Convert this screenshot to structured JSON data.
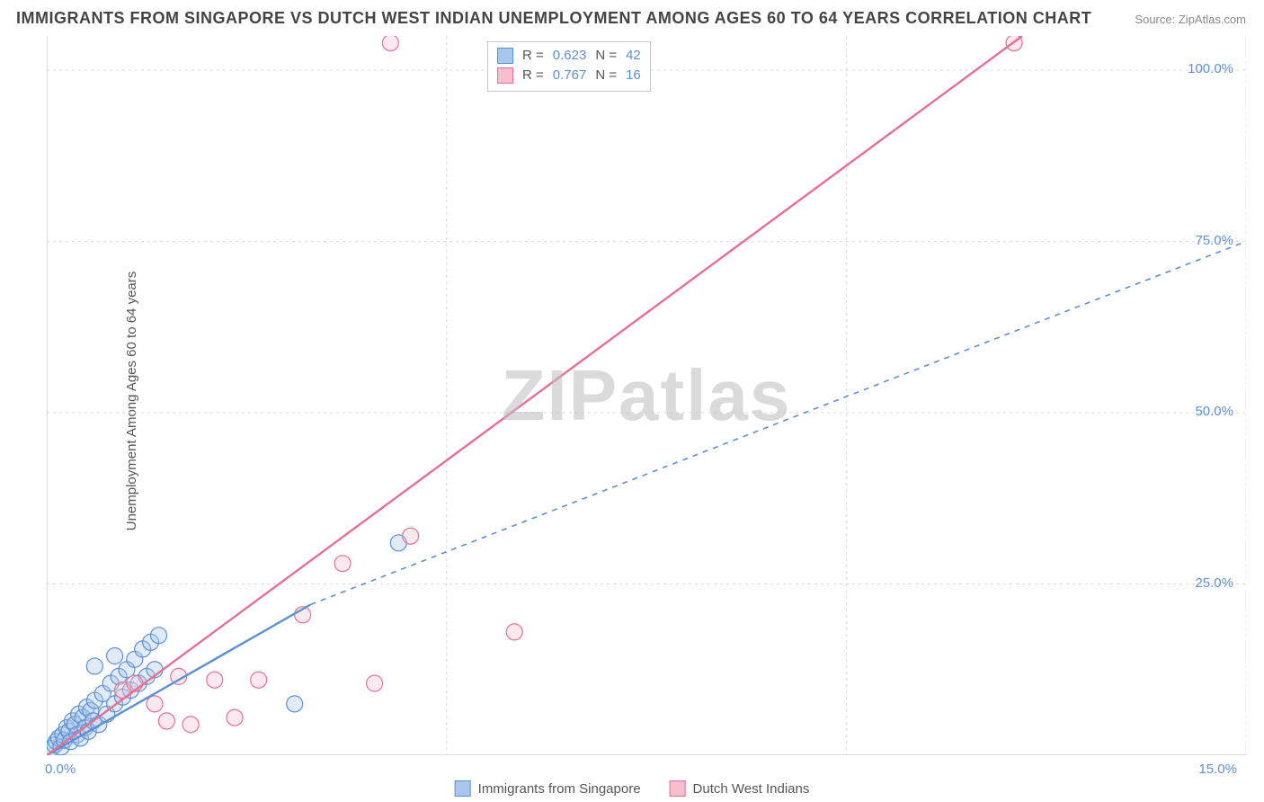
{
  "title": "IMMIGRANTS FROM SINGAPORE VS DUTCH WEST INDIAN UNEMPLOYMENT AMONG AGES 60 TO 64 YEARS CORRELATION CHART",
  "source_label": "Source:",
  "source_value": "ZipAtlas.com",
  "watermark": "ZIPatlas",
  "ylabel": "Unemployment Among Ages 60 to 64 years",
  "chart": {
    "type": "scatter",
    "background_color": "#ffffff",
    "grid_color": "#d9d9d9",
    "axis_color": "#cfcfcf",
    "tick_label_color": "#5b8fd6",
    "xlim": [
      0,
      15
    ],
    "ylim": [
      0,
      105
    ],
    "x_ticks": [
      0,
      5,
      10,
      15
    ],
    "x_tick_labels": [
      "0.0%",
      "",
      "",
      "15.0%"
    ],
    "y_ticks": [
      25,
      50,
      75,
      100
    ],
    "y_tick_labels": [
      "25.0%",
      "50.0%",
      "75.0%",
      "100.0%"
    ],
    "marker_radius": 9,
    "marker_stroke_width": 1.2,
    "marker_fill_opacity": 0.35,
    "line_width": 2.4,
    "dash_pattern": "6,6",
    "series": [
      {
        "name": "Immigrants from Singapore",
        "color_stroke": "#5b8fd6",
        "color_fill": "#a9c6eb",
        "R": 0.623,
        "N": 42,
        "trend": {
          "x1": 0.0,
          "y1": 0.0,
          "x2": 3.3,
          "y2": 22.0,
          "dashed_x2": 15.0,
          "dashed_y2": 75.0
        },
        "points": [
          [
            0.05,
            1.0
          ],
          [
            0.1,
            1.5
          ],
          [
            0.12,
            2.0
          ],
          [
            0.15,
            2.5
          ],
          [
            0.18,
            1.2
          ],
          [
            0.2,
            3.0
          ],
          [
            0.22,
            2.2
          ],
          [
            0.25,
            4.0
          ],
          [
            0.28,
            3.5
          ],
          [
            0.3,
            2.0
          ],
          [
            0.32,
            5.0
          ],
          [
            0.35,
            4.5
          ],
          [
            0.38,
            3.0
          ],
          [
            0.4,
            6.0
          ],
          [
            0.42,
            2.5
          ],
          [
            0.45,
            5.5
          ],
          [
            0.48,
            4.0
          ],
          [
            0.5,
            7.0
          ],
          [
            0.52,
            3.5
          ],
          [
            0.55,
            6.5
          ],
          [
            0.58,
            5.0
          ],
          [
            0.6,
            8.0
          ],
          [
            0.65,
            4.5
          ],
          [
            0.7,
            9.0
          ],
          [
            0.75,
            6.0
          ],
          [
            0.8,
            10.5
          ],
          [
            0.85,
            7.5
          ],
          [
            0.9,
            11.5
          ],
          [
            0.95,
            8.5
          ],
          [
            1.0,
            12.5
          ],
          [
            1.05,
            9.5
          ],
          [
            1.1,
            14.0
          ],
          [
            1.15,
            10.5
          ],
          [
            1.2,
            15.5
          ],
          [
            1.25,
            11.5
          ],
          [
            1.3,
            16.5
          ],
          [
            1.35,
            12.5
          ],
          [
            1.4,
            17.5
          ],
          [
            0.6,
            13.0
          ],
          [
            0.85,
            14.5
          ],
          [
            3.1,
            7.5
          ],
          [
            4.4,
            31.0
          ]
        ]
      },
      {
        "name": "Dutch West Indians",
        "color_stroke": "#e86f91",
        "color_fill": "#f6bfce",
        "R": 0.767,
        "N": 16,
        "trend": {
          "x1": 0.0,
          "y1": 0.0,
          "x2": 12.2,
          "y2": 105.0
        },
        "points": [
          [
            0.95,
            9.5
          ],
          [
            1.1,
            10.5
          ],
          [
            1.5,
            5.0
          ],
          [
            1.65,
            11.5
          ],
          [
            1.8,
            4.5
          ],
          [
            2.1,
            11.0
          ],
          [
            2.35,
            5.5
          ],
          [
            2.65,
            11.0
          ],
          [
            3.2,
            20.5
          ],
          [
            3.7,
            28.0
          ],
          [
            4.1,
            10.5
          ],
          [
            4.55,
            32.0
          ],
          [
            4.3,
            104.0
          ],
          [
            5.85,
            18.0
          ],
          [
            12.1,
            104.0
          ],
          [
            1.35,
            7.5
          ]
        ]
      }
    ]
  },
  "legend_corr": {
    "R_label": "R =",
    "N_label": "N ="
  },
  "legend_bottom": [
    {
      "label": "Immigrants from Singapore",
      "stroke": "#5b8fd6",
      "fill": "#a9c6eb"
    },
    {
      "label": "Dutch West Indians",
      "stroke": "#e86f91",
      "fill": "#f6bfce"
    }
  ]
}
